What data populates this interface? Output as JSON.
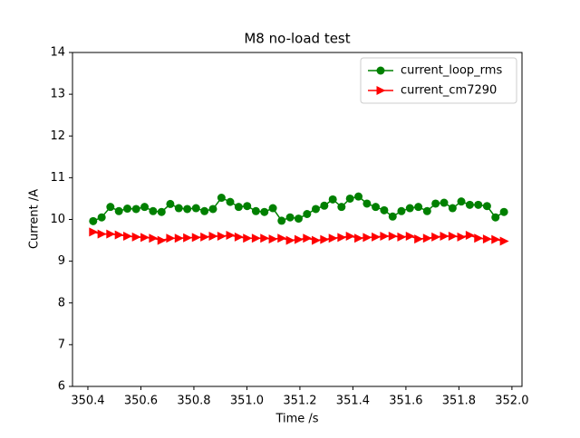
{
  "chart_data": {
    "type": "line",
    "title": "M8 no-load test",
    "x_label": "Time /s",
    "y_label": "Current /A",
    "x": [
      350.42,
      350.452,
      350.485,
      350.517,
      350.549,
      350.582,
      350.614,
      350.646,
      350.678,
      350.711,
      350.743,
      350.775,
      350.808,
      350.84,
      350.872,
      350.904,
      350.937,
      350.969,
      351.001,
      351.034,
      351.066,
      351.098,
      351.131,
      351.163,
      351.195,
      351.227,
      351.26,
      351.292,
      351.324,
      351.357,
      351.389,
      351.421,
      351.453,
      351.486,
      351.518,
      351.55,
      351.583,
      351.615,
      351.647,
      351.68,
      351.712,
      351.744,
      351.776,
      351.809,
      351.841,
      351.873,
      351.906,
      351.938,
      351.97
    ],
    "series": [
      {
        "name": "current_loop_rms",
        "color": "#008000",
        "marker": "circle",
        "values": [
          9.96,
          10.05,
          10.3,
          10.2,
          10.26,
          10.25,
          10.3,
          10.2,
          10.18,
          10.37,
          10.27,
          10.25,
          10.27,
          10.2,
          10.25,
          10.52,
          10.42,
          10.3,
          10.32,
          10.2,
          10.18,
          10.27,
          9.97,
          10.05,
          10.02,
          10.13,
          10.25,
          10.33,
          10.48,
          10.3,
          10.5,
          10.55,
          10.38,
          10.3,
          10.22,
          10.07,
          10.2,
          10.27,
          10.3,
          10.2,
          10.38,
          10.4,
          10.27,
          10.43,
          10.35,
          10.35,
          10.32,
          10.05,
          10.18
        ]
      },
      {
        "name": "current_cm7290",
        "color": "#ff0000",
        "marker": "triangle-right",
        "values": [
          9.7,
          9.65,
          9.65,
          9.63,
          9.6,
          9.58,
          9.57,
          9.55,
          9.5,
          9.55,
          9.55,
          9.56,
          9.57,
          9.58,
          9.6,
          9.6,
          9.62,
          9.58,
          9.55,
          9.55,
          9.55,
          9.53,
          9.55,
          9.5,
          9.52,
          9.55,
          9.5,
          9.52,
          9.55,
          9.57,
          9.6,
          9.55,
          9.57,
          9.58,
          9.6,
          9.6,
          9.58,
          9.6,
          9.53,
          9.55,
          9.58,
          9.6,
          9.6,
          9.58,
          9.62,
          9.55,
          9.53,
          9.52,
          9.48
        ]
      }
    ],
    "xlim": [
      350.342,
      352.038
    ],
    "xticks": [
      350.4,
      350.6,
      350.8,
      {
        "value": 351,
        "label": "351.0"
      },
      351.2,
      351.4,
      351.6,
      351.8,
      {
        "value": 352,
        "label": "352.0"
      }
    ],
    "ylim": [
      6,
      14
    ],
    "yticks": [
      6,
      7,
      8,
      9,
      10,
      11,
      12,
      13,
      14
    ],
    "legend": "upper right"
  }
}
